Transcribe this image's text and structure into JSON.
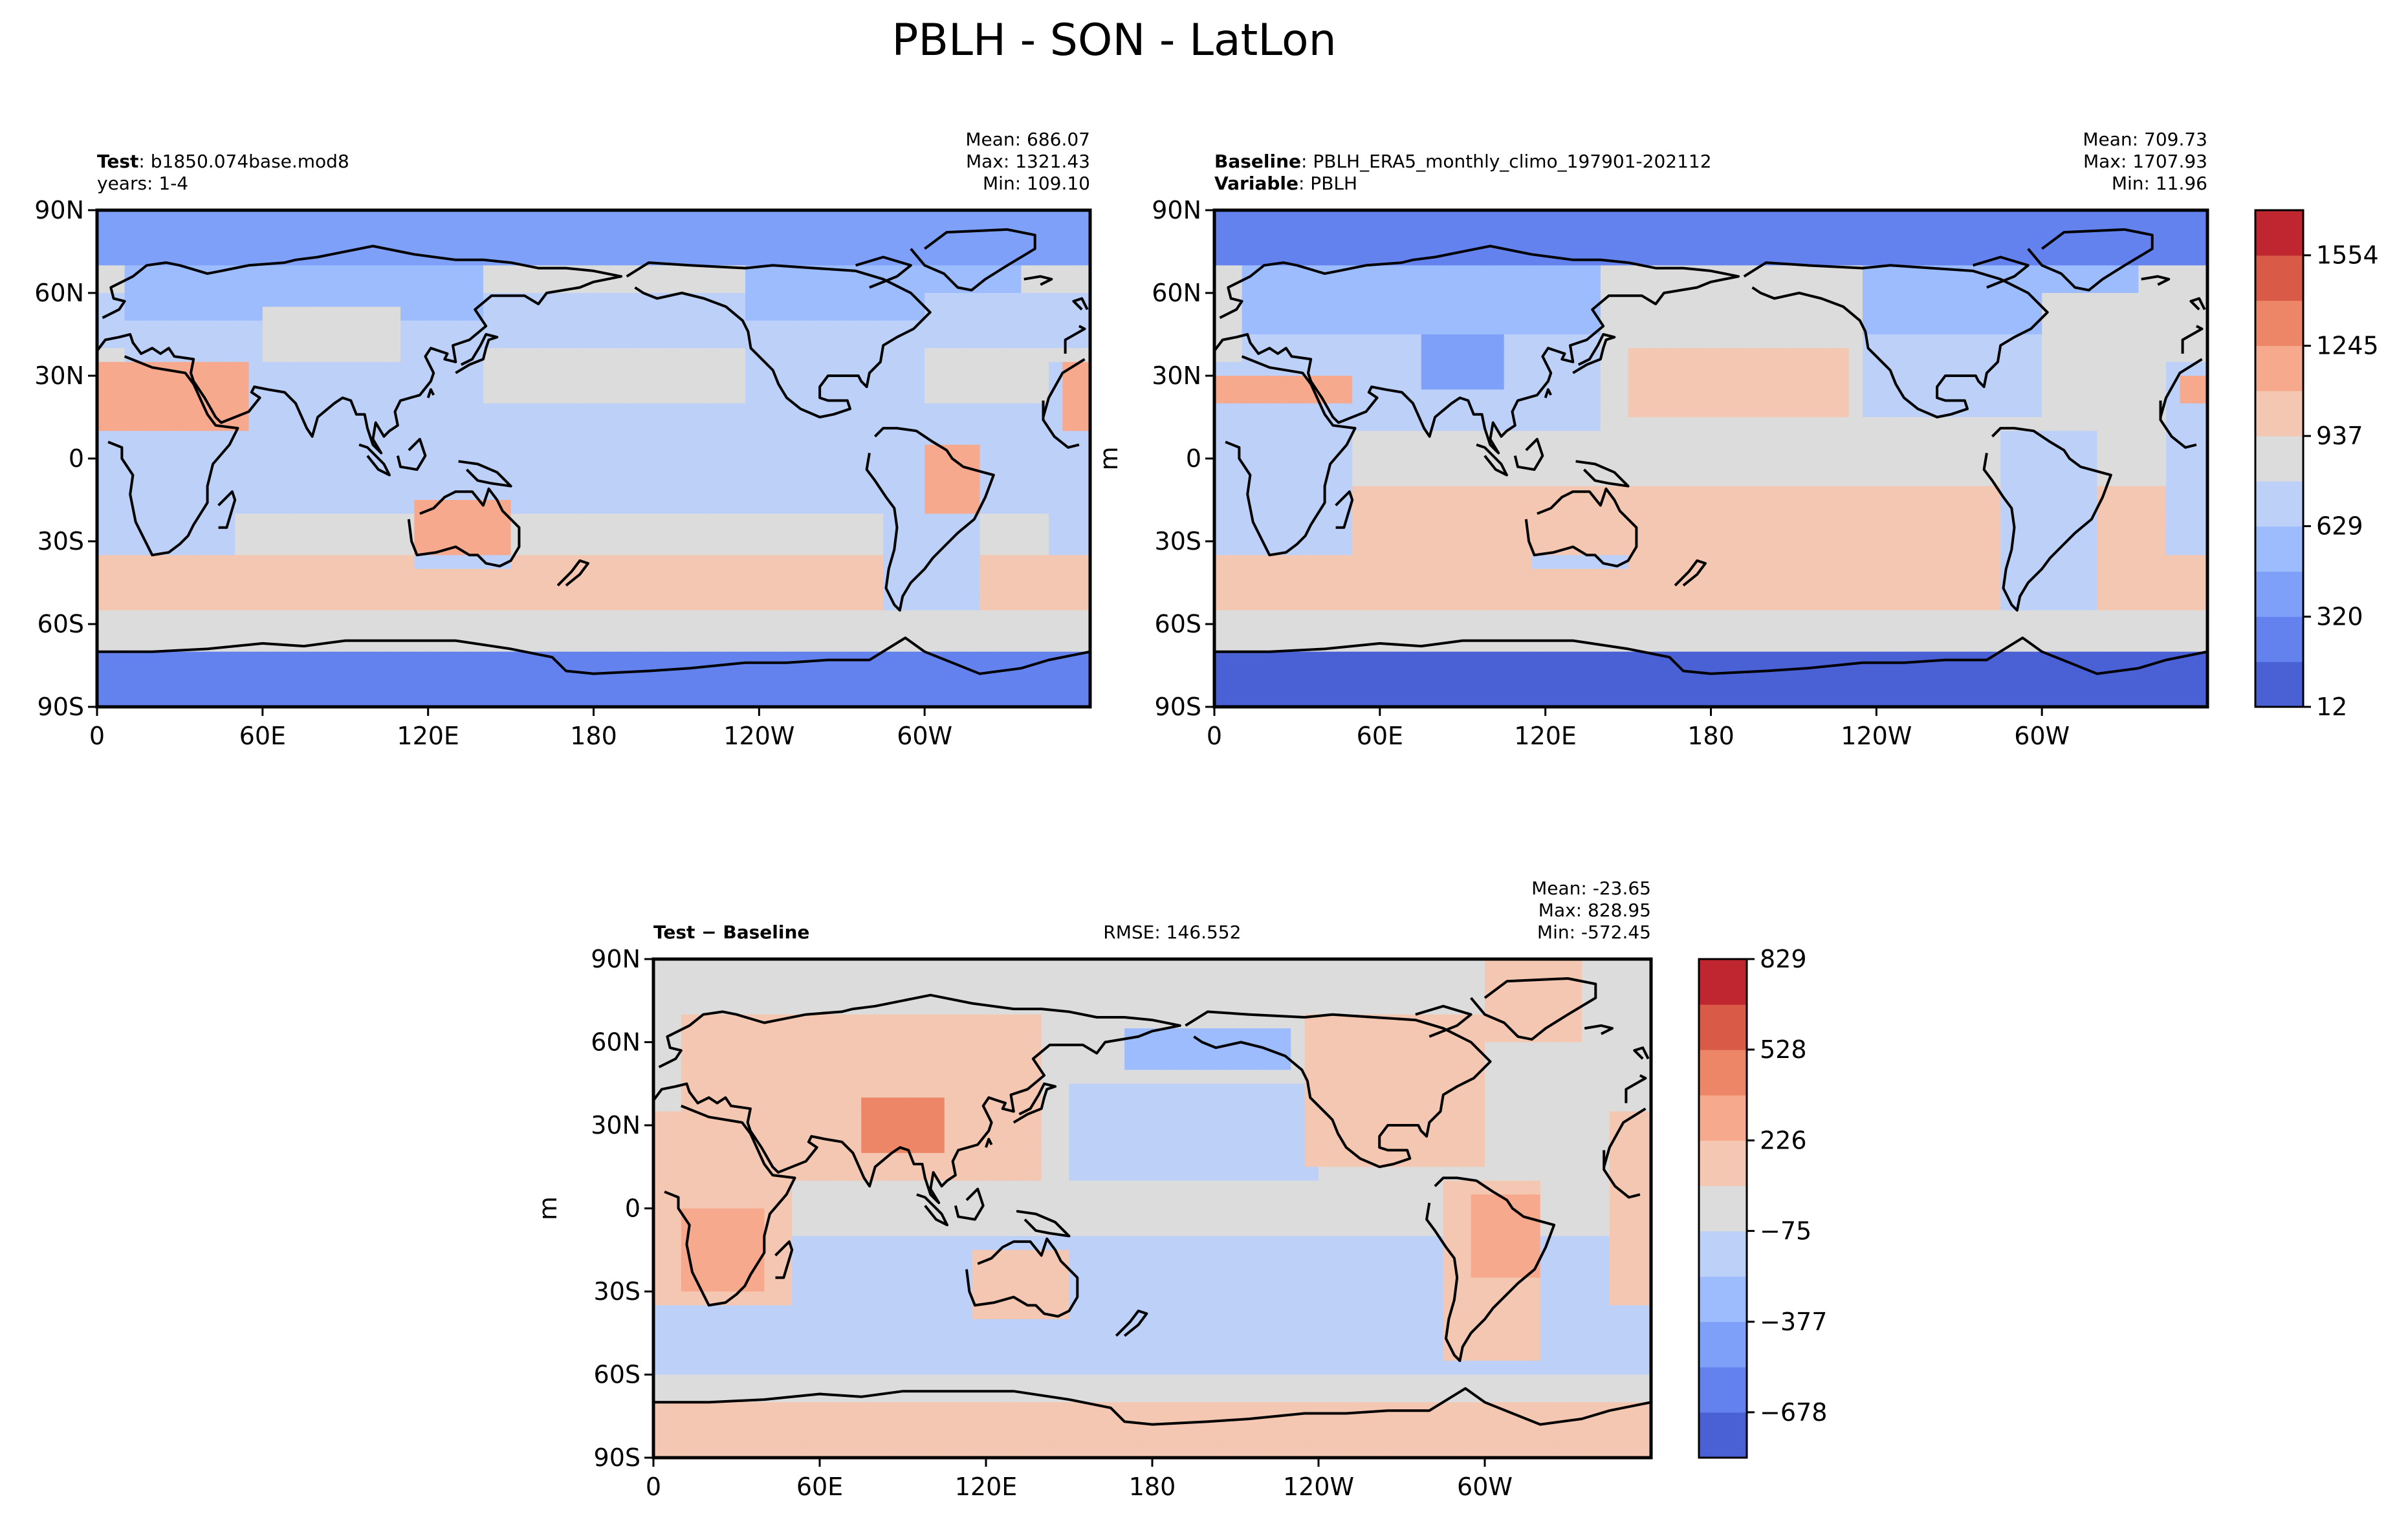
{
  "figure": {
    "title": "PBLH - SON - LatLon"
  },
  "colors": {
    "levels_test": [
      "#4a61d6",
      "#6382ee",
      "#7ea0f9",
      "#9cbcfd",
      "#bdd1f8",
      "#dcdcdc",
      "#f3c7b1",
      "#f6a98c",
      "#ec8667",
      "#d85a47",
      "#c0262f"
    ],
    "levels_diff": [
      "#4a61d6",
      "#6382ee",
      "#7ea0f9",
      "#9cbcfd",
      "#bdd1f8",
      "#dcdcdc",
      "#f3c7b1",
      "#f6a98c",
      "#ec8667",
      "#d85a47",
      "#c0262f"
    ],
    "coast": "#000000"
  },
  "chart_data": [
    {
      "type": "heatmap",
      "panel": "test",
      "label_bold": "Test",
      "label_sep": ": ",
      "label_value": "b1850.074base.mod8",
      "line2": "years: 1-4",
      "line2_bold": "",
      "stats": {
        "mean": "Mean: 686.07",
        "max": "Max: 1321.43",
        "min": "Min: 109.10"
      },
      "xticks": [
        "0",
        "60E",
        "120E",
        "180",
        "120W",
        "60W"
      ],
      "yticks": [
        "90N",
        "60N",
        "30N",
        "0",
        "30S",
        "60S",
        "90S"
      ],
      "ylabel": "",
      "xlim": [
        0,
        360
      ],
      "ylim": [
        -90,
        90
      ]
    },
    {
      "type": "heatmap",
      "panel": "baseline",
      "label_bold": "Baseline",
      "label_sep": ": ",
      "label_value": "PBLH_ERA5_monthly_climo_197901-202112",
      "line2_bold": "Variable",
      "line2": ": PBLH",
      "stats": {
        "mean": "Mean: 709.73",
        "max": "Max: 1707.93",
        "min": "Min: 11.96"
      },
      "xticks": [
        "0",
        "60E",
        "120E",
        "180",
        "120W",
        "60W"
      ],
      "yticks": [
        "90N",
        "60N",
        "30N",
        "0",
        "30S",
        "60S",
        "90S"
      ],
      "ylabel": "m",
      "xlim": [
        0,
        360
      ],
      "ylim": [
        -90,
        90
      ],
      "colorbar": {
        "ticks": [
          "12",
          "320",
          "629",
          "937",
          "1245",
          "1554"
        ],
        "range": [
          12,
          1708
        ]
      }
    },
    {
      "type": "heatmap",
      "panel": "difference",
      "label_bold": "Test − Baseline",
      "rmse": "RMSE: 146.552",
      "stats": {
        "mean": "Mean: -23.65",
        "max": "Max: 828.95",
        "min": "Min: -572.45"
      },
      "xticks": [
        "0",
        "60E",
        "120E",
        "180",
        "120W",
        "60W"
      ],
      "yticks": [
        "90N",
        "60N",
        "30N",
        "0",
        "30S",
        "60S",
        "90S"
      ],
      "ylabel": "m",
      "xlim": [
        0,
        360
      ],
      "ylim": [
        -90,
        90
      ],
      "colorbar": {
        "ticks": [
          "−678",
          "−377",
          "−75",
          "226",
          "528",
          "829"
        ],
        "range": [
          -829,
          829
        ]
      }
    }
  ]
}
